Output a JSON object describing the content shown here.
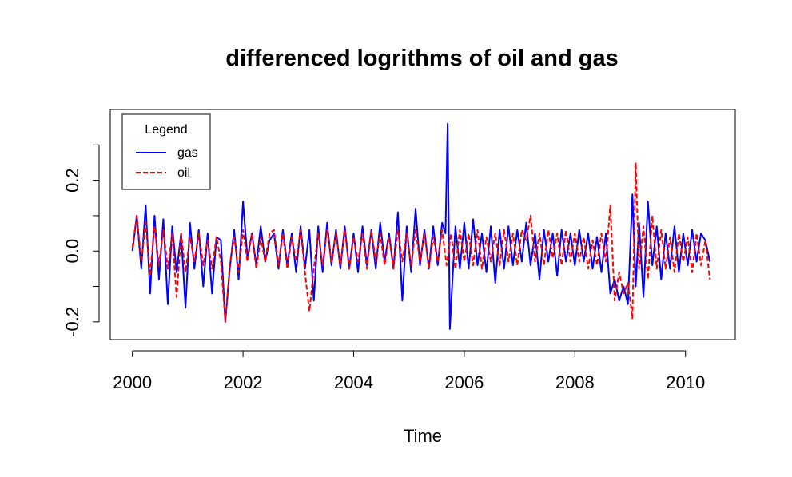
{
  "chart_data": {
    "type": "line",
    "title": "differenced logrithms of oil and gas",
    "xlabel": "Time",
    "ylabel": "",
    "xlim": [
      1999.6,
      2010.9
    ],
    "ylim": [
      -0.25,
      0.4
    ],
    "x_ticks": [
      2000,
      2002,
      2004,
      2006,
      2008,
      2010
    ],
    "x_tick_labels": [
      "2000",
      "2002",
      "2004",
      "2006",
      "2008",
      "2010"
    ],
    "y_ticks": [
      -0.2,
      0.0,
      0.2
    ],
    "y_tick_labels": [
      "-0.2",
      "0.0",
      "0.2"
    ],
    "y_minor_ticks": [
      -0.1,
      0.1,
      0.3
    ],
    "grid": false,
    "legend": {
      "title": "Legend",
      "placement": "top-left",
      "entries": [
        {
          "label": "gas",
          "color": "#0000FF",
          "dash": "solid"
        },
        {
          "label": "oil",
          "color": "#FF0000",
          "dash": "dashed"
        }
      ]
    },
    "series": [
      {
        "name": "gas",
        "color": "#0000FF",
        "dash": "solid",
        "x": [
          2000.0,
          2000.08,
          2000.16,
          2000.24,
          2000.32,
          2000.4,
          2000.48,
          2000.56,
          2000.64,
          2000.72,
          2000.8,
          2000.88,
          2000.96,
          2001.04,
          2001.12,
          2001.2,
          2001.28,
          2001.36,
          2001.44,
          2001.52,
          2001.6,
          2001.68,
          2001.76,
          2001.84,
          2001.92,
          2002.0,
          2002.08,
          2002.16,
          2002.24,
          2002.32,
          2002.4,
          2002.48,
          2002.56,
          2002.64,
          2002.72,
          2002.8,
          2002.88,
          2002.96,
          2003.04,
          2003.12,
          2003.2,
          2003.28,
          2003.36,
          2003.44,
          2003.52,
          2003.6,
          2003.68,
          2003.76,
          2003.84,
          2003.92,
          2004.0,
          2004.08,
          2004.16,
          2004.24,
          2004.32,
          2004.4,
          2004.48,
          2004.56,
          2004.64,
          2004.72,
          2004.8,
          2004.88,
          2004.96,
          2005.04,
          2005.12,
          2005.2,
          2005.28,
          2005.36,
          2005.44,
          2005.52,
          2005.6,
          2005.66,
          2005.7,
          2005.74,
          2005.78,
          2005.84,
          2005.92,
          2006.0,
          2006.08,
          2006.16,
          2006.24,
          2006.32,
          2006.4,
          2006.48,
          2006.56,
          2006.64,
          2006.72,
          2006.8,
          2006.88,
          2006.96,
          2007.04,
          2007.12,
          2007.2,
          2007.28,
          2007.36,
          2007.44,
          2007.52,
          2007.6,
          2007.68,
          2007.76,
          2007.84,
          2007.92,
          2008.0,
          2008.08,
          2008.16,
          2008.24,
          2008.32,
          2008.4,
          2008.48,
          2008.56,
          2008.64,
          2008.72,
          2008.8,
          2008.88,
          2008.96,
          2009.04,
          2009.1,
          2009.16,
          2009.24,
          2009.32,
          2009.4,
          2009.48,
          2009.56,
          2009.64,
          2009.72,
          2009.8,
          2009.88,
          2009.96,
          2010.04,
          2010.12,
          2010.2,
          2010.28,
          2010.36,
          2010.44
        ],
        "y": [
          0.0,
          0.1,
          -0.05,
          0.13,
          -0.12,
          0.1,
          -0.08,
          0.09,
          -0.15,
          0.07,
          -0.06,
          0.05,
          -0.16,
          0.08,
          -0.05,
          0.06,
          -0.1,
          0.05,
          -0.12,
          0.04,
          0.03,
          -0.2,
          -0.05,
          0.06,
          -0.08,
          0.14,
          -0.02,
          0.05,
          -0.04,
          0.07,
          -0.03,
          0.03,
          0.05,
          -0.05,
          0.06,
          -0.04,
          0.05,
          -0.06,
          0.07,
          -0.05,
          0.06,
          -0.14,
          0.07,
          -0.06,
          0.08,
          -0.04,
          0.06,
          -0.05,
          0.07,
          -0.05,
          0.05,
          -0.06,
          0.07,
          -0.04,
          0.06,
          -0.05,
          0.08,
          -0.03,
          0.05,
          -0.05,
          0.11,
          -0.14,
          0.07,
          -0.06,
          0.12,
          -0.04,
          0.06,
          -0.05,
          0.07,
          -0.04,
          0.08,
          0.05,
          0.36,
          -0.22,
          -0.1,
          0.07,
          -0.05,
          0.08,
          -0.05,
          0.09,
          -0.04,
          0.05,
          -0.06,
          0.07,
          -0.09,
          0.06,
          -0.05,
          0.07,
          -0.04,
          0.06,
          -0.03,
          0.08,
          -0.04,
          0.05,
          -0.08,
          0.06,
          -0.03,
          0.05,
          -0.07,
          0.06,
          -0.03,
          0.05,
          -0.04,
          0.06,
          -0.03,
          0.05,
          -0.05,
          0.04,
          -0.06,
          0.05,
          -0.12,
          -0.08,
          -0.14,
          -0.1,
          -0.15,
          0.16,
          -0.1,
          0.08,
          -0.13,
          0.14,
          -0.04,
          0.07,
          -0.08,
          0.05,
          -0.05,
          0.07,
          -0.06,
          0.05,
          -0.04,
          0.06,
          -0.03,
          0.05,
          0.03,
          -0.03
        ]
      },
      {
        "name": "oil",
        "color": "#FF0000",
        "dash": "dashed",
        "x": [
          2000.0,
          2000.08,
          2000.16,
          2000.24,
          2000.32,
          2000.4,
          2000.48,
          2000.56,
          2000.64,
          2000.72,
          2000.8,
          2000.88,
          2000.96,
          2001.04,
          2001.12,
          2001.2,
          2001.28,
          2001.36,
          2001.44,
          2001.52,
          2001.6,
          2001.68,
          2001.76,
          2001.84,
          2001.92,
          2002.0,
          2002.08,
          2002.16,
          2002.24,
          2002.32,
          2002.4,
          2002.48,
          2002.56,
          2002.64,
          2002.72,
          2002.8,
          2002.88,
          2002.96,
          2003.04,
          2003.12,
          2003.2,
          2003.28,
          2003.36,
          2003.44,
          2003.52,
          2003.6,
          2003.68,
          2003.76,
          2003.84,
          2003.92,
          2004.0,
          2004.08,
          2004.16,
          2004.24,
          2004.32,
          2004.4,
          2004.48,
          2004.56,
          2004.64,
          2004.72,
          2004.8,
          2004.88,
          2004.96,
          2005.04,
          2005.12,
          2005.2,
          2005.28,
          2005.36,
          2005.44,
          2005.52,
          2005.6,
          2005.68,
          2005.76,
          2005.84,
          2005.92,
          2006.0,
          2006.08,
          2006.16,
          2006.24,
          2006.32,
          2006.4,
          2006.48,
          2006.56,
          2006.64,
          2006.72,
          2006.8,
          2006.88,
          2006.96,
          2007.04,
          2007.12,
          2007.2,
          2007.28,
          2007.36,
          2007.44,
          2007.52,
          2007.6,
          2007.68,
          2007.76,
          2007.84,
          2007.92,
          2008.0,
          2008.08,
          2008.16,
          2008.24,
          2008.32,
          2008.4,
          2008.48,
          2008.56,
          2008.64,
          2008.72,
          2008.8,
          2008.88,
          2008.96,
          2009.04,
          2009.1,
          2009.16,
          2009.24,
          2009.32,
          2009.4,
          2009.48,
          2009.56,
          2009.64,
          2009.72,
          2009.8,
          2009.88,
          2009.96,
          2010.04,
          2010.12,
          2010.2,
          2010.28,
          2010.36,
          2010.44
        ],
        "y": [
          0.01,
          0.1,
          -0.03,
          0.08,
          -0.07,
          0.07,
          -0.04,
          0.06,
          -0.05,
          0.05,
          -0.13,
          0.05,
          -0.06,
          0.04,
          -0.03,
          0.05,
          -0.04,
          0.03,
          -0.05,
          0.04,
          -0.03,
          -0.2,
          -0.04,
          0.04,
          -0.06,
          0.06,
          -0.03,
          0.05,
          -0.05,
          0.04,
          -0.03,
          0.05,
          0.06,
          -0.04,
          0.05,
          -0.05,
          0.04,
          -0.03,
          0.06,
          -0.06,
          -0.17,
          -0.05,
          0.05,
          -0.04,
          0.06,
          -0.03,
          0.05,
          -0.04,
          0.06,
          -0.05,
          0.04,
          -0.03,
          0.05,
          -0.05,
          0.06,
          -0.03,
          0.05,
          -0.04,
          0.04,
          -0.05,
          0.06,
          -0.03,
          0.05,
          -0.04,
          0.06,
          -0.03,
          0.05,
          -0.05,
          0.04,
          -0.03,
          0.06,
          -0.04,
          0.05,
          -0.05,
          0.06,
          -0.03,
          0.05,
          -0.04,
          0.06,
          -0.05,
          0.04,
          -0.03,
          0.05,
          -0.04,
          0.06,
          -0.03,
          0.05,
          -0.04,
          0.06,
          0.03,
          0.1,
          -0.03,
          0.05,
          -0.04,
          0.06,
          -0.02,
          0.05,
          -0.04,
          0.06,
          -0.03,
          0.05,
          -0.03,
          0.04,
          -0.05,
          0.03,
          -0.04,
          0.05,
          -0.03,
          0.13,
          -0.14,
          -0.06,
          -0.12,
          -0.09,
          -0.19,
          0.25,
          -0.05,
          0.07,
          -0.08,
          0.1,
          -0.05,
          0.06,
          -0.05,
          0.04,
          -0.06,
          0.05,
          -0.03,
          0.04,
          -0.06,
          0.05,
          -0.04,
          0.03,
          -0.08
        ]
      }
    ]
  }
}
